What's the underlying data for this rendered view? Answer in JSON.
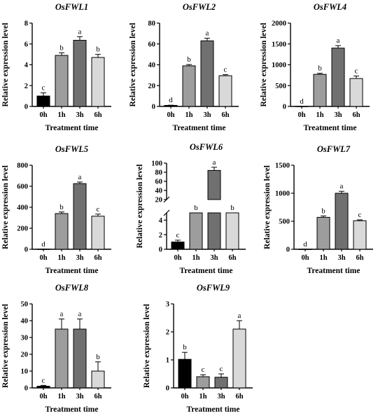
{
  "x_axis_title": "Treatment time",
  "y_axis_title": "Relative expression level",
  "chart_data": [
    {
      "type": "bar",
      "title": "OsFWL1",
      "xlabel": "Treatment time",
      "ylabel": "Relative expression level",
      "categories": [
        "0h",
        "1h",
        "3h",
        "6h"
      ],
      "values": [
        1.0,
        4.9,
        6.35,
        4.7
      ],
      "errors": [
        0.3,
        0.25,
        0.35,
        0.3
      ],
      "significance": [
        "c",
        "b",
        "a",
        "b"
      ],
      "ylim": [
        0,
        8
      ],
      "yticks": [
        0,
        2,
        4,
        6,
        8
      ],
      "colors": [
        "#000000",
        "#9d9d9d",
        "#707070",
        "#d9d9d9"
      ]
    },
    {
      "type": "bar",
      "title": "OsFWL2",
      "xlabel": "Treatment time",
      "ylabel": "Relative expression level",
      "categories": [
        "0h",
        "1h",
        "3h",
        "6h"
      ],
      "values": [
        1,
        39,
        63,
        29.5
      ],
      "errors": [
        0.2,
        1.2,
        2.5,
        1.0
      ],
      "significance": [
        "d",
        "b",
        "a",
        "c"
      ],
      "ylim": [
        0,
        80
      ],
      "yticks": [
        0,
        20,
        40,
        60,
        80
      ],
      "colors": [
        "#000000",
        "#9d9d9d",
        "#707070",
        "#d9d9d9"
      ]
    },
    {
      "type": "bar",
      "title": "OsFWL4",
      "xlabel": "Treatment time",
      "ylabel": "Relative expression level",
      "categories": [
        "0h",
        "1h",
        "3h",
        "6h"
      ],
      "values": [
        1,
        770,
        1400,
        670
      ],
      "errors": [
        0.5,
        25,
        60,
        60
      ],
      "significance": [
        "d",
        "b",
        "a",
        "c"
      ],
      "ylim": [
        0,
        2000
      ],
      "yticks": [
        0,
        500,
        1000,
        1500,
        2000
      ],
      "colors": [
        "#000000",
        "#9d9d9d",
        "#707070",
        "#d9d9d9"
      ]
    },
    {
      "type": "bar",
      "title": "OsFWL5",
      "xlabel": "Treatment time",
      "ylabel": "Relative expression level",
      "categories": [
        "0h",
        "1h",
        "3h",
        "6h"
      ],
      "values": [
        1,
        340,
        625,
        315
      ],
      "errors": [
        0.5,
        15,
        15,
        20
      ],
      "significance": [
        "d",
        "b",
        "a",
        "c"
      ],
      "ylim": [
        0,
        800
      ],
      "yticks": [
        0,
        200,
        400,
        600,
        800
      ],
      "colors": [
        "#000000",
        "#9d9d9d",
        "#707070",
        "#d9d9d9"
      ]
    },
    {
      "type": "bar",
      "title": "OsFWL6",
      "xlabel": "Treatment time",
      "ylabel": "Relative expression level",
      "categories": [
        "0h",
        "1h",
        "3h",
        "6h"
      ],
      "values": [
        1.0,
        10,
        84,
        12
      ],
      "errors": [
        0.25,
        2,
        7,
        3
      ],
      "significance": [
        "c",
        "b",
        "a",
        "b"
      ],
      "ylim": [
        0,
        100
      ],
      "broken_axis": {
        "lower": [
          0,
          5
        ],
        "upper": [
          20,
          100
        ]
      },
      "yticks": [
        0,
        2,
        4,
        20,
        40,
        60,
        80,
        100
      ],
      "colors": [
        "#000000",
        "#9d9d9d",
        "#707070",
        "#d9d9d9"
      ]
    },
    {
      "type": "bar",
      "title": "OsFWL7",
      "xlabel": "Treatment time",
      "ylabel": "Relative expression level",
      "categories": [
        "0h",
        "1h",
        "3h",
        "6h"
      ],
      "values": [
        1,
        570,
        1000,
        510
      ],
      "errors": [
        0.5,
        25,
        35,
        15
      ],
      "significance": [
        "d",
        "b",
        "a",
        "c"
      ],
      "ylim": [
        0,
        1500
      ],
      "yticks": [
        0,
        500,
        1000,
        1500
      ],
      "colors": [
        "#000000",
        "#9d9d9d",
        "#707070",
        "#d9d9d9"
      ]
    },
    {
      "type": "bar",
      "title": "OsFWL8",
      "xlabel": "Treatment time",
      "ylabel": "Relative expression level",
      "categories": [
        "0h",
        "1h",
        "3h",
        "6h"
      ],
      "values": [
        1.0,
        35,
        35,
        10
      ],
      "errors": [
        0.5,
        6,
        6,
        5.5
      ],
      "significance": [
        "c",
        "a",
        "a",
        "b"
      ],
      "ylim": [
        0,
        50
      ],
      "yticks": [
        0,
        10,
        20,
        30,
        40,
        50
      ],
      "colors": [
        "#000000",
        "#9d9d9d",
        "#707070",
        "#d9d9d9"
      ]
    },
    {
      "type": "bar",
      "title": "OsFWL9",
      "xlabel": "Treatment time",
      "ylabel": "Relative expression level",
      "categories": [
        "0h",
        "1h",
        "3h",
        "6h"
      ],
      "values": [
        1.02,
        0.4,
        0.38,
        2.1
      ],
      "errors": [
        0.25,
        0.07,
        0.12,
        0.3
      ],
      "significance": [
        "b",
        "c",
        "c",
        "a"
      ],
      "ylim": [
        0,
        3
      ],
      "yticks": [
        0,
        1,
        2,
        3
      ],
      "colors": [
        "#000000",
        "#9d9d9d",
        "#707070",
        "#d9d9d9"
      ]
    }
  ]
}
